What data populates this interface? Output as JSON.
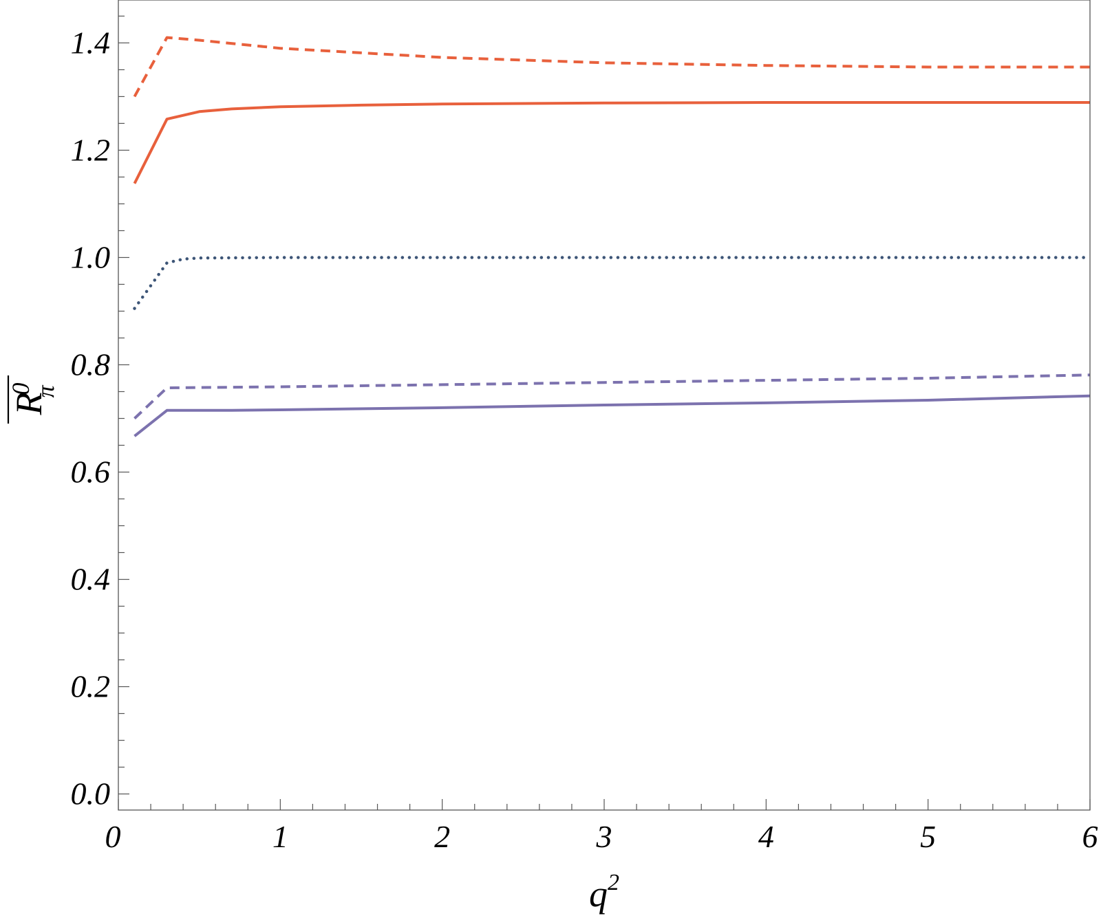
{
  "chart_data": {
    "type": "line",
    "title": "",
    "xlabel": "q",
    "xlabel_sup": "2",
    "ylabel": "R",
    "ylabel_sup": "0",
    "ylabel_sub": "π",
    "ylabel_overline": true,
    "xlim": [
      0,
      6
    ],
    "ylim": [
      -0.03,
      1.48
    ],
    "xticks": [
      0,
      1,
      2,
      3,
      4,
      5,
      6
    ],
    "xtick_labels": [
      "0",
      "1",
      "2",
      "3",
      "4",
      "5",
      "6"
    ],
    "xminor_step": 0.2,
    "yticks": [
      0.0,
      0.2,
      0.4,
      0.6,
      0.8,
      1.0,
      1.2,
      1.4
    ],
    "ytick_labels": [
      "0.0",
      "0.2",
      "0.4",
      "0.6",
      "0.8",
      "1.0",
      "1.2",
      "1.4"
    ],
    "yminor_step": 0.05,
    "grid": false,
    "legend": "none",
    "series": [
      {
        "style": "dashed",
        "color": "#E8603C",
        "x": [
          0.1,
          0.3,
          0.5,
          1.0,
          2.0,
          3.0,
          4.0,
          5.0,
          6.0
        ],
        "y": [
          1.3,
          1.41,
          1.405,
          1.39,
          1.373,
          1.363,
          1.358,
          1.355,
          1.355
        ]
      },
      {
        "style": "solid",
        "color": "#E8603C",
        "x": [
          0.1,
          0.3,
          0.5,
          0.7,
          1.0,
          1.5,
          2.0,
          3.0,
          4.0,
          5.0,
          6.0
        ],
        "y": [
          1.138,
          1.258,
          1.272,
          1.277,
          1.281,
          1.284,
          1.286,
          1.288,
          1.289,
          1.289,
          1.289
        ]
      },
      {
        "style": "dotted",
        "color": "#3D5577",
        "x": [
          0.1,
          0.3,
          0.4,
          0.5,
          1.0,
          2.0,
          3.0,
          4.0,
          5.0,
          6.0
        ],
        "y": [
          0.905,
          0.99,
          0.997,
          0.999,
          1.0,
          1.0,
          1.0,
          1.0,
          1.0,
          1.0
        ]
      },
      {
        "style": "dashed",
        "color": "#7C72AE",
        "x": [
          0.1,
          0.3,
          1.0,
          2.0,
          3.0,
          4.0,
          5.0,
          6.0
        ],
        "y": [
          0.7,
          0.757,
          0.759,
          0.763,
          0.767,
          0.771,
          0.775,
          0.781
        ]
      },
      {
        "style": "solid",
        "color": "#7C72AE",
        "x": [
          0.1,
          0.3,
          0.7,
          1.0,
          2.0,
          3.0,
          4.0,
          5.0,
          6.0
        ],
        "y": [
          0.667,
          0.715,
          0.715,
          0.716,
          0.72,
          0.725,
          0.729,
          0.734,
          0.742
        ]
      }
    ]
  }
}
